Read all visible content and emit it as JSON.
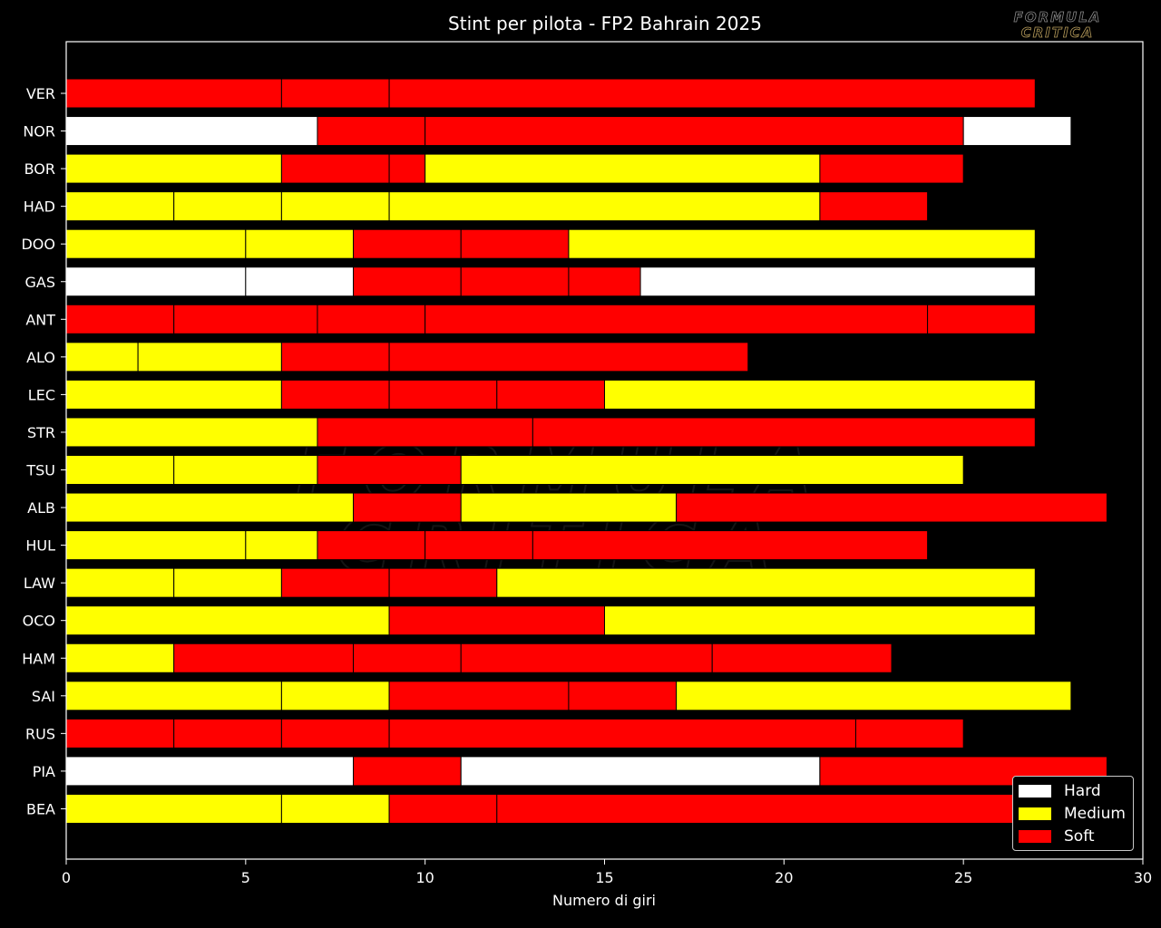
{
  "chart_data": {
    "type": "bar",
    "orientation": "horizontal-stacked",
    "title": "Stint per pilota - FP2 Bahrain 2025",
    "xlabel": "Numero di giri",
    "ylabel": "",
    "xlim": [
      0,
      30
    ],
    "xticks": [
      "0",
      "5",
      "10",
      "15",
      "20",
      "25",
      "30"
    ],
    "grid": false,
    "legend_position": "bottom-right",
    "compound_colors": {
      "Hard": "#ffffff",
      "Medium": "#ffff00",
      "Soft": "#ff0000"
    },
    "legend": [
      {
        "label": "Hard",
        "compound": "Hard"
      },
      {
        "label": "Medium",
        "compound": "Medium"
      },
      {
        "label": "Soft",
        "compound": "Soft"
      }
    ],
    "drivers": [
      {
        "name": "VER",
        "stints": [
          [
            0,
            6,
            "Soft"
          ],
          [
            6,
            9,
            "Soft"
          ],
          [
            9,
            27,
            "Soft"
          ]
        ]
      },
      {
        "name": "NOR",
        "stints": [
          [
            0,
            7,
            "Hard"
          ],
          [
            7,
            10,
            "Soft"
          ],
          [
            10,
            25,
            "Soft"
          ],
          [
            25,
            28,
            "Hard"
          ]
        ]
      },
      {
        "name": "BOR",
        "stints": [
          [
            0,
            6,
            "Medium"
          ],
          [
            6,
            9,
            "Soft"
          ],
          [
            9,
            10,
            "Soft"
          ],
          [
            10,
            21,
            "Medium"
          ],
          [
            21,
            25,
            "Soft"
          ]
        ]
      },
      {
        "name": "HAD",
        "stints": [
          [
            0,
            3,
            "Medium"
          ],
          [
            3,
            6,
            "Medium"
          ],
          [
            6,
            9,
            "Medium"
          ],
          [
            9,
            21,
            "Medium"
          ],
          [
            21,
            24,
            "Soft"
          ]
        ]
      },
      {
        "name": "DOO",
        "stints": [
          [
            0,
            5,
            "Medium"
          ],
          [
            5,
            8,
            "Medium"
          ],
          [
            8,
            11,
            "Soft"
          ],
          [
            11,
            14,
            "Soft"
          ],
          [
            14,
            27,
            "Medium"
          ]
        ]
      },
      {
        "name": "GAS",
        "stints": [
          [
            0,
            5,
            "Hard"
          ],
          [
            5,
            8,
            "Hard"
          ],
          [
            8,
            11,
            "Soft"
          ],
          [
            11,
            14,
            "Soft"
          ],
          [
            14,
            16,
            "Soft"
          ],
          [
            16,
            27,
            "Hard"
          ]
        ]
      },
      {
        "name": "ANT",
        "stints": [
          [
            0,
            3,
            "Soft"
          ],
          [
            3,
            7,
            "Soft"
          ],
          [
            7,
            10,
            "Soft"
          ],
          [
            10,
            24,
            "Soft"
          ],
          [
            24,
            27,
            "Soft"
          ]
        ]
      },
      {
        "name": "ALO",
        "stints": [
          [
            0,
            2,
            "Medium"
          ],
          [
            2,
            6,
            "Medium"
          ],
          [
            6,
            9,
            "Soft"
          ],
          [
            9,
            19,
            "Soft"
          ]
        ]
      },
      {
        "name": "LEC",
        "stints": [
          [
            0,
            6,
            "Medium"
          ],
          [
            6,
            9,
            "Soft"
          ],
          [
            9,
            12,
            "Soft"
          ],
          [
            12,
            15,
            "Soft"
          ],
          [
            15,
            27,
            "Medium"
          ]
        ]
      },
      {
        "name": "STR",
        "stints": [
          [
            0,
            7,
            "Medium"
          ],
          [
            7,
            13,
            "Soft"
          ],
          [
            13,
            27,
            "Soft"
          ]
        ]
      },
      {
        "name": "TSU",
        "stints": [
          [
            0,
            3,
            "Medium"
          ],
          [
            3,
            7,
            "Medium"
          ],
          [
            7,
            11,
            "Soft"
          ],
          [
            11,
            25,
            "Medium"
          ]
        ]
      },
      {
        "name": "ALB",
        "stints": [
          [
            0,
            8,
            "Medium"
          ],
          [
            8,
            11,
            "Soft"
          ],
          [
            11,
            17,
            "Medium"
          ],
          [
            17,
            29,
            "Soft"
          ]
        ]
      },
      {
        "name": "HUL",
        "stints": [
          [
            0,
            5,
            "Medium"
          ],
          [
            5,
            7,
            "Medium"
          ],
          [
            7,
            10,
            "Soft"
          ],
          [
            10,
            13,
            "Soft"
          ],
          [
            13,
            24,
            "Soft"
          ]
        ]
      },
      {
        "name": "LAW",
        "stints": [
          [
            0,
            3,
            "Medium"
          ],
          [
            3,
            6,
            "Medium"
          ],
          [
            6,
            9,
            "Soft"
          ],
          [
            9,
            12,
            "Soft"
          ],
          [
            12,
            27,
            "Medium"
          ]
        ]
      },
      {
        "name": "OCO",
        "stints": [
          [
            0,
            9,
            "Medium"
          ],
          [
            9,
            15,
            "Soft"
          ],
          [
            15,
            27,
            "Medium"
          ]
        ]
      },
      {
        "name": "HAM",
        "stints": [
          [
            0,
            3,
            "Medium"
          ],
          [
            3,
            8,
            "Soft"
          ],
          [
            8,
            11,
            "Soft"
          ],
          [
            11,
            18,
            "Soft"
          ],
          [
            18,
            23,
            "Soft"
          ]
        ]
      },
      {
        "name": "SAI",
        "stints": [
          [
            0,
            6,
            "Medium"
          ],
          [
            6,
            9,
            "Medium"
          ],
          [
            9,
            14,
            "Soft"
          ],
          [
            14,
            17,
            "Soft"
          ],
          [
            17,
            28,
            "Medium"
          ]
        ]
      },
      {
        "name": "RUS",
        "stints": [
          [
            0,
            3,
            "Soft"
          ],
          [
            3,
            6,
            "Soft"
          ],
          [
            6,
            9,
            "Soft"
          ],
          [
            9,
            22,
            "Soft"
          ],
          [
            22,
            25,
            "Soft"
          ]
        ]
      },
      {
        "name": "PIA",
        "stints": [
          [
            0,
            8,
            "Hard"
          ],
          [
            8,
            11,
            "Soft"
          ],
          [
            11,
            21,
            "Hard"
          ],
          [
            21,
            29,
            "Soft"
          ]
        ]
      },
      {
        "name": "BEA",
        "stints": [
          [
            0,
            6,
            "Medium"
          ],
          [
            6,
            9,
            "Medium"
          ],
          [
            9,
            12,
            "Soft"
          ],
          [
            12,
            29,
            "Soft"
          ]
        ]
      }
    ]
  },
  "watermark": {
    "line1": "FORMULA",
    "line2": "CRITICA"
  }
}
